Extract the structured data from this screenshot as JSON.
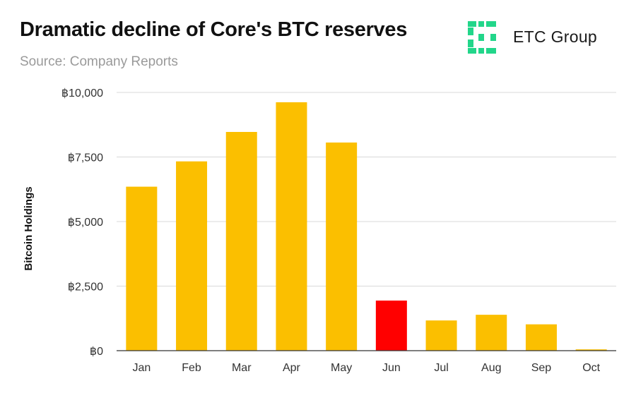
{
  "header": {
    "title": "Dramatic decline of Core's BTC reserves",
    "subtitle": "Source: Company Reports"
  },
  "logo": {
    "text": "ETC Group",
    "icon": "etc-group-logo-icon",
    "color": "#22d68a"
  },
  "colors": {
    "bar": "#fbbf00",
    "highlight": "#ff0000",
    "grid": "#d9d9d9",
    "axis": "#333333"
  },
  "chart_data": {
    "type": "bar",
    "title": "Dramatic decline of Core's BTC reserves",
    "subtitle": "Source: Company Reports",
    "xlabel": "",
    "ylabel": "Bitcoin Holdings",
    "categories": [
      "Jan",
      "Feb",
      "Mar",
      "Apr",
      "May",
      "Jun",
      "Jul",
      "Aug",
      "Sep",
      "Oct"
    ],
    "values": [
      6350,
      7330,
      8470,
      9620,
      8060,
      1940,
      1170,
      1390,
      1020,
      50
    ],
    "highlight_index": 5,
    "ylim": [
      0,
      10000
    ],
    "yticks": [
      0,
      2500,
      5000,
      7500,
      10000
    ],
    "ytick_labels": [
      "฿0",
      "฿2,500",
      "฿5,000",
      "฿7,500",
      "฿10,000"
    ],
    "grid": true,
    "legend": "none"
  }
}
